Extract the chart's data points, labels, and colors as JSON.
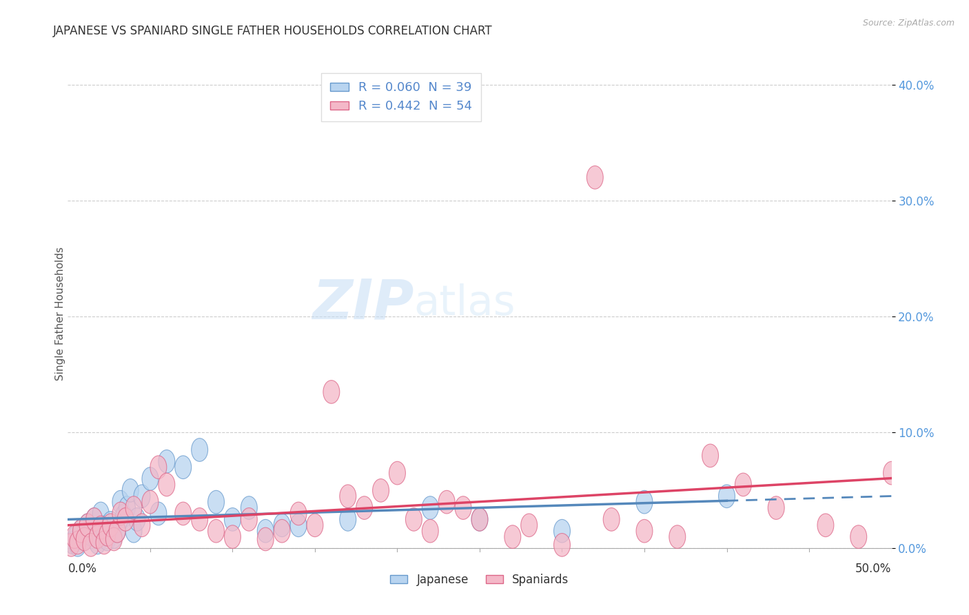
{
  "title": "JAPANESE VS SPANIARD SINGLE FATHER HOUSEHOLDS CORRELATION CHART",
  "source": "Source: ZipAtlas.com",
  "ylabel": "Single Father Households",
  "ytick_vals": [
    0.0,
    10.0,
    20.0,
    30.0,
    40.0
  ],
  "xlim": [
    0.0,
    50.0
  ],
  "ylim": [
    -1.5,
    42.0
  ],
  "legend_japanese": "R = 0.060  N = 39",
  "legend_spaniard": "R = 0.442  N = 54",
  "japanese_color": "#b8d4f0",
  "japanese_edge_color": "#6699cc",
  "japanese_line_color": "#5588bb",
  "spaniard_color": "#f4b8c8",
  "spaniard_edge_color": "#dd6688",
  "spaniard_line_color": "#dd4466",
  "watermark_zip": "ZIP",
  "watermark_atlas": "atlas",
  "japanese_x": [
    0.3,
    0.5,
    0.6,
    0.8,
    1.0,
    1.2,
    1.4,
    1.6,
    1.8,
    2.0,
    2.2,
    2.4,
    2.6,
    2.8,
    3.0,
    3.2,
    3.4,
    3.6,
    3.8,
    4.0,
    4.2,
    4.5,
    5.0,
    5.5,
    6.0,
    7.0,
    8.0,
    9.0,
    10.0,
    11.0,
    12.0,
    13.0,
    14.0,
    17.0,
    22.0,
    25.0,
    30.0,
    35.0,
    40.0
  ],
  "japanese_y": [
    0.5,
    1.0,
    0.3,
    1.5,
    0.8,
    2.0,
    1.2,
    2.5,
    0.5,
    3.0,
    1.8,
    0.8,
    2.2,
    1.0,
    1.5,
    4.0,
    2.8,
    3.5,
    5.0,
    1.5,
    2.5,
    4.5,
    6.0,
    3.0,
    7.5,
    7.0,
    8.5,
    4.0,
    2.5,
    3.5,
    1.5,
    2.0,
    2.0,
    2.5,
    3.5,
    2.5,
    1.5,
    4.0,
    4.5
  ],
  "spaniard_x": [
    0.2,
    0.4,
    0.6,
    0.8,
    1.0,
    1.2,
    1.4,
    1.6,
    1.8,
    2.0,
    2.2,
    2.4,
    2.6,
    2.8,
    3.0,
    3.2,
    3.5,
    4.0,
    4.5,
    5.0,
    5.5,
    6.0,
    7.0,
    8.0,
    9.0,
    10.0,
    11.0,
    12.0,
    13.0,
    14.0,
    15.0,
    16.0,
    17.0,
    18.0,
    19.0,
    20.0,
    21.0,
    22.0,
    23.0,
    24.0,
    25.0,
    27.0,
    28.0,
    30.0,
    32.0,
    33.0,
    35.0,
    37.0,
    39.0,
    41.0,
    43.0,
    46.0,
    48.0,
    50.0
  ],
  "spaniard_y": [
    0.3,
    1.0,
    0.5,
    1.5,
    0.8,
    2.0,
    0.3,
    2.5,
    1.0,
    1.8,
    0.5,
    1.2,
    2.0,
    0.8,
    1.5,
    3.0,
    2.5,
    3.5,
    2.0,
    4.0,
    7.0,
    5.5,
    3.0,
    2.5,
    1.5,
    1.0,
    2.5,
    0.8,
    1.5,
    3.0,
    2.0,
    13.5,
    4.5,
    3.5,
    5.0,
    6.5,
    2.5,
    1.5,
    4.0,
    3.5,
    2.5,
    1.0,
    2.0,
    0.3,
    32.0,
    2.5,
    1.5,
    1.0,
    8.0,
    5.5,
    3.5,
    2.0,
    1.0,
    6.5
  ],
  "jap_line_solid_end": 40.0,
  "spa_line_start": 0.0,
  "spa_line_end": 50.0
}
